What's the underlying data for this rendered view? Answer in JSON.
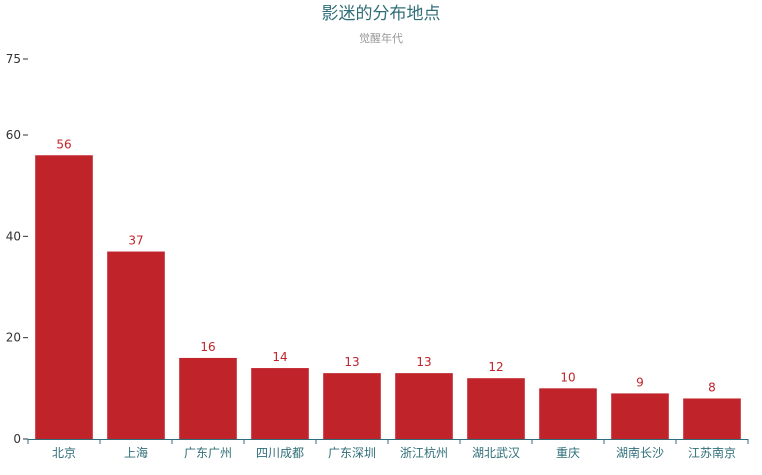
{
  "chart_data": {
    "type": "bar",
    "title": "影迷的分布地点",
    "subtitle": "觉醒年代",
    "categories": [
      "北京",
      "上海",
      "广东广州",
      "四川成都",
      "广东深圳",
      "浙江杭州",
      "湖北武汉",
      "重庆",
      "湖南长沙",
      "江苏南京"
    ],
    "values": [
      56,
      37,
      16,
      14,
      13,
      13,
      12,
      10,
      9,
      8
    ],
    "ylim": [
      0,
      75
    ],
    "yticks": [
      0,
      20,
      40,
      60,
      75
    ],
    "grid": false,
    "legend": "none",
    "colors": {
      "bar": "#c1232b",
      "label": "#c1232b",
      "axis": "#2f6e79",
      "title": "#2f6e79",
      "subtitle": "#999999"
    }
  }
}
